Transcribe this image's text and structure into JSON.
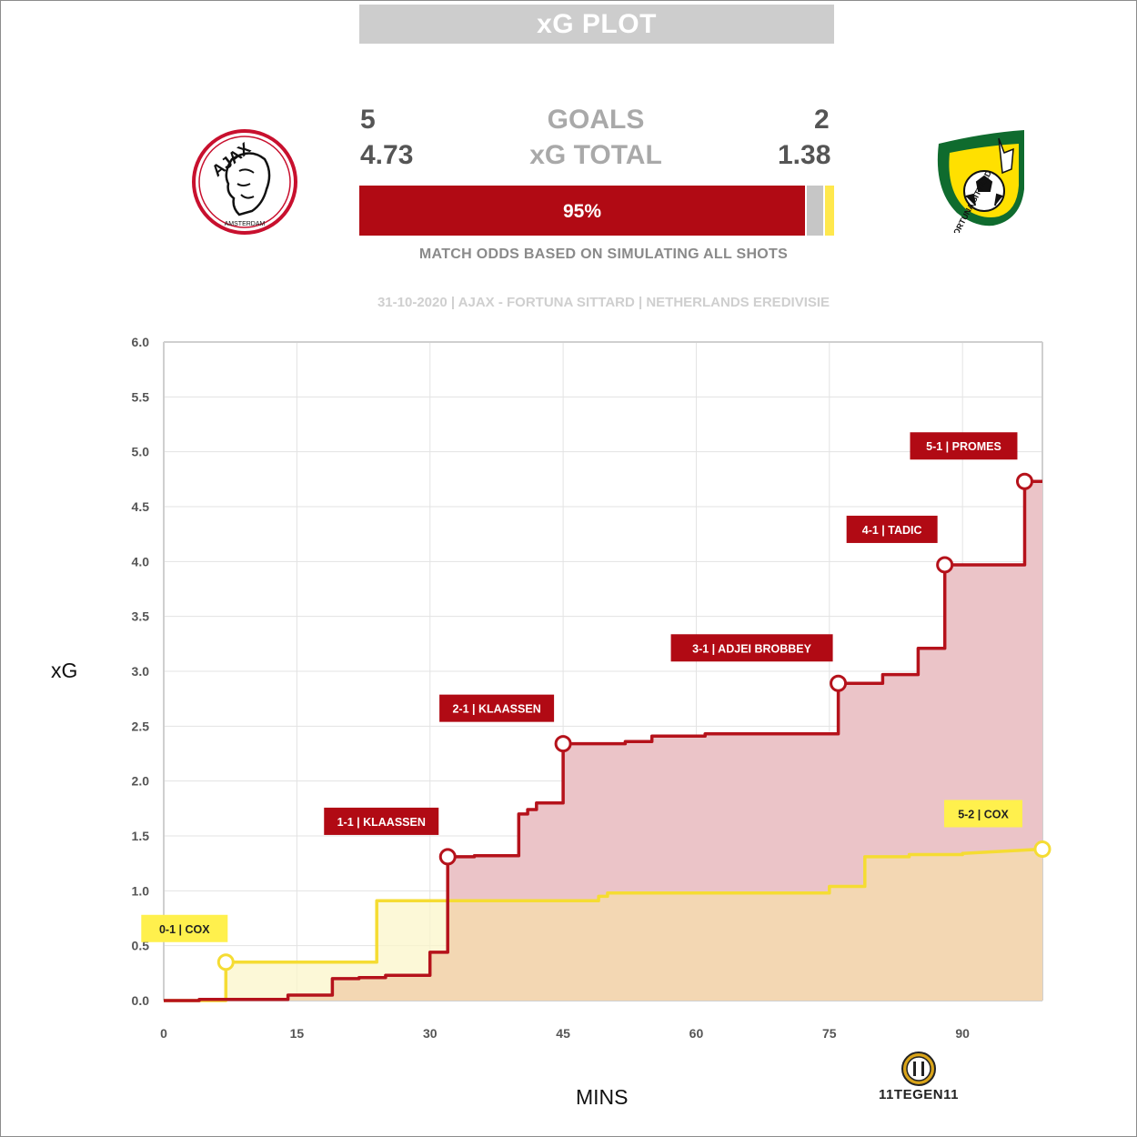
{
  "header": {
    "title": "xG PLOT"
  },
  "scoreboard": {
    "home_goals": "5",
    "away_goals": "2",
    "goals_label": "GOALS",
    "home_xg": "4.73",
    "away_xg": "1.38",
    "xg_label": "xG TOTAL"
  },
  "odds": {
    "home_win_pct": 95,
    "draw_pct": 4,
    "away_win_pct": 1,
    "home_win_label": "95%",
    "note": "MATCH ODDS BASED ON SIMULATING ALL SHOTS",
    "colors": {
      "home": "#b10a14",
      "draw": "#c6c6c6",
      "away": "#ffe84d"
    }
  },
  "match_info": "31-10-2020 | AJAX - FORTUNA SITTARD | NETHERLANDS EREDIVISIE",
  "logos": {
    "home": {
      "icon": "ajax-crest-icon",
      "text_top": "AJAX",
      "text_bottom": "AMSTERDAM"
    },
    "away": {
      "icon": "fortuna-sittard-crest-icon",
      "text": "FORTUNA SITTARD"
    }
  },
  "brand": {
    "icon": "11tegen11-logo-icon",
    "text": "11TEGEN11"
  },
  "chart_data": {
    "type": "area",
    "xlabel": "MINS",
    "ylabel": "xG",
    "xlim": [
      0,
      99
    ],
    "ylim": [
      0,
      6
    ],
    "x_ticks": [
      0,
      15,
      30,
      45,
      60,
      75,
      90
    ],
    "y_ticks": [
      "0.0",
      "0.5",
      "1.0",
      "1.5",
      "2.0",
      "2.5",
      "3.0",
      "3.5",
      "4.0",
      "4.5",
      "5.0",
      "5.5",
      "6.0"
    ],
    "grid": true,
    "series": [
      {
        "team": "Ajax",
        "color": "#b5121b",
        "fill": "#ebc4c8",
        "points": [
          [
            0,
            0.0
          ],
          [
            4,
            0.0
          ],
          [
            4,
            0.01
          ],
          [
            14,
            0.01
          ],
          [
            14,
            0.05
          ],
          [
            19,
            0.05
          ],
          [
            19,
            0.2
          ],
          [
            22,
            0.2
          ],
          [
            22,
            0.21
          ],
          [
            25,
            0.21
          ],
          [
            25,
            0.23
          ],
          [
            30,
            0.23
          ],
          [
            30,
            0.44
          ],
          [
            32,
            0.44
          ],
          [
            32,
            1.31
          ],
          [
            35,
            1.31
          ],
          [
            35,
            1.32
          ],
          [
            40,
            1.32
          ],
          [
            40,
            1.7
          ],
          [
            41,
            1.7
          ],
          [
            41,
            1.74
          ],
          [
            42,
            1.74
          ],
          [
            42,
            1.8
          ],
          [
            45,
            1.8
          ],
          [
            45,
            2.34
          ],
          [
            52,
            2.34
          ],
          [
            52,
            2.36
          ],
          [
            55,
            2.36
          ],
          [
            55,
            2.41
          ],
          [
            61,
            2.41
          ],
          [
            61,
            2.43
          ],
          [
            76,
            2.43
          ],
          [
            76,
            2.89
          ],
          [
            81,
            2.89
          ],
          [
            81,
            2.97
          ],
          [
            85,
            2.97
          ],
          [
            85,
            3.21
          ],
          [
            88,
            3.21
          ],
          [
            88,
            3.97
          ],
          [
            97,
            3.97
          ],
          [
            97,
            4.73
          ],
          [
            99,
            4.73
          ]
        ]
      },
      {
        "team": "Fortuna Sittard",
        "color": "#f5dc33",
        "fill": "#fbf5c9",
        "points": [
          [
            0,
            0.0
          ],
          [
            7,
            0.0
          ],
          [
            7,
            0.35
          ],
          [
            24,
            0.35
          ],
          [
            24,
            0.91
          ],
          [
            49,
            0.91
          ],
          [
            49,
            0.95
          ],
          [
            50,
            0.95
          ],
          [
            50,
            0.98
          ],
          [
            75,
            0.98
          ],
          [
            75,
            1.04
          ],
          [
            79,
            1.04
          ],
          [
            79,
            1.31
          ],
          [
            84,
            1.31
          ],
          [
            84,
            1.33
          ],
          [
            90,
            1.33
          ],
          [
            90,
            1.34
          ],
          [
            99,
            1.38
          ]
        ]
      }
    ],
    "annotations": [
      {
        "label": "0-1 | COX",
        "team": "away",
        "x": 7,
        "y": 0.35
      },
      {
        "label": "1-1 | KLAASSEN",
        "team": "home",
        "x": 32,
        "y": 1.31
      },
      {
        "label": "2-1 | KLAASSEN",
        "team": "home",
        "x": 45,
        "y": 2.34
      },
      {
        "label": "3-1 | ADJEI BROBBEY",
        "team": "home",
        "x": 76,
        "y": 2.89
      },
      {
        "label": "4-1 | TADIC",
        "team": "home",
        "x": 88,
        "y": 3.97
      },
      {
        "label": "5-1 | PROMES",
        "team": "home",
        "x": 97,
        "y": 4.73
      },
      {
        "label": "5-2 | COX",
        "team": "away",
        "x": 99,
        "y": 1.38
      }
    ]
  }
}
